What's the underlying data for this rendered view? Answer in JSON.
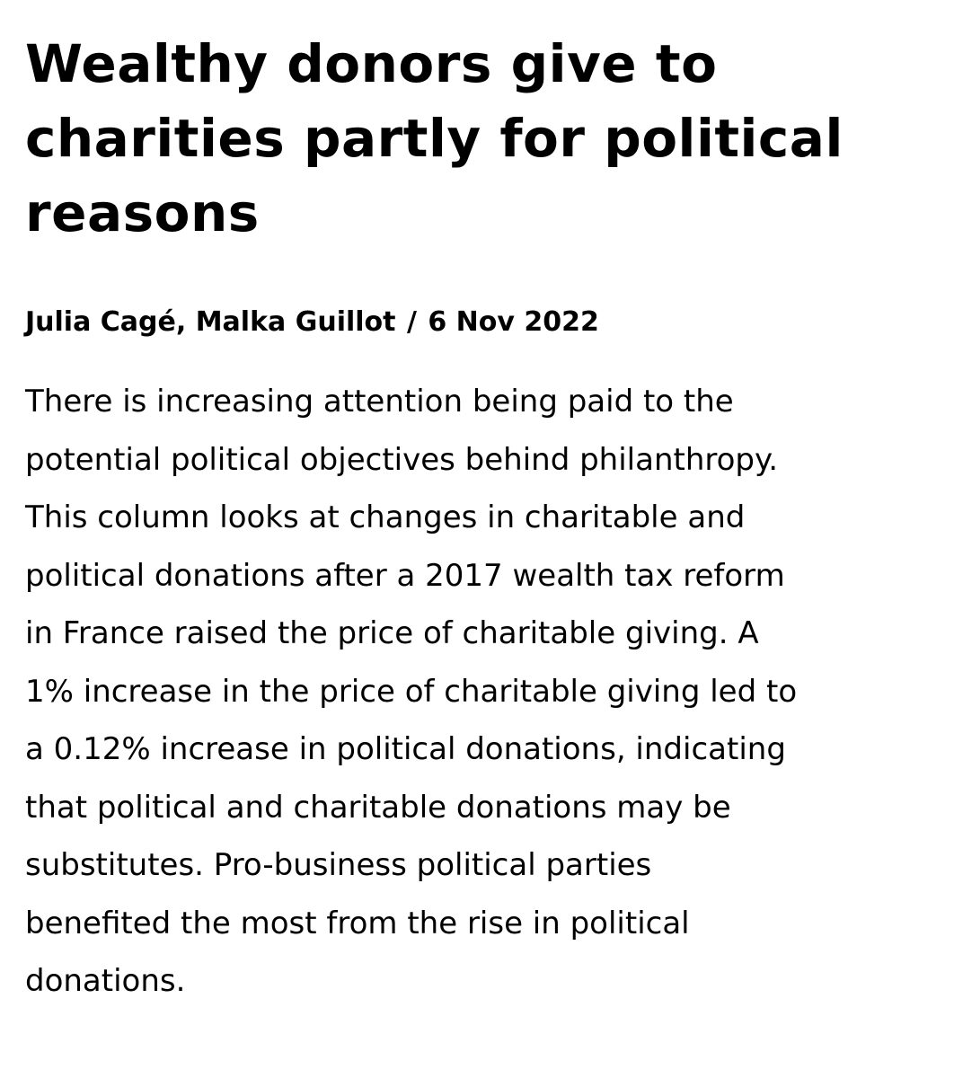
{
  "article": {
    "headline": "Wealthy donors give to charities partly for political reasons",
    "byline": {
      "authors": "Julia Cagé, Malka Guillot",
      "separator": " / ",
      "date": "6 Nov 2022"
    },
    "summary_lines": [
      "There is increasing attention being paid to the",
      "potential political objectives behind philanthropy.",
      "This column looks at changes in charitable and",
      "political donations after a 2017 wealth tax reform",
      "in France raised the price of charitable giving. A",
      "1% increase in the price of charitable giving led to",
      "a 0.12% increase in political donations, indicating",
      "that political and charitable donations may be",
      "substitutes. Pro-business political parties",
      "benefited the most from the rise in political",
      "donations."
    ]
  }
}
